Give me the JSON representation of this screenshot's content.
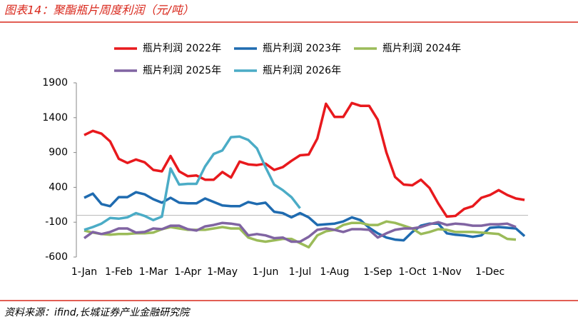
{
  "chart_data": {
    "type": "line",
    "title": "图表14：聚酯瓶片周度利润（元/吨）",
    "source": "资料来源：ifind,长城证券产业金融研究院",
    "categories": [
      "1-Jan",
      null,
      null,
      null,
      "1-Feb",
      null,
      null,
      null,
      "1-Mar",
      null,
      null,
      null,
      "1-Apr",
      null,
      null,
      null,
      "1-May",
      null,
      null,
      null,
      null,
      "1-Jun",
      null,
      null,
      null,
      "1-Jul",
      null,
      null,
      null,
      "1-Aug",
      null,
      null,
      null,
      null,
      "1-Sep",
      null,
      null,
      null,
      "1-Oct",
      null,
      null,
      null,
      "1-Nov",
      null,
      null,
      null,
      null,
      "1-Dec",
      null,
      null,
      null,
      null
    ],
    "ylim": [
      -600,
      1900
    ],
    "yticks": [
      -600,
      -100,
      400,
      900,
      1400,
      1900
    ],
    "series": [
      {
        "name": "瓶片利润 2022年",
        "color": "#e8191d",
        "values": [
          1150,
          1210,
          1170,
          1060,
          810,
          750,
          800,
          760,
          650,
          630,
          850,
          630,
          560,
          570,
          510,
          510,
          620,
          540,
          770,
          730,
          720,
          740,
          650,
          690,
          780,
          860,
          870,
          1100,
          1600,
          1410,
          1410,
          1610,
          1570,
          1570,
          1370,
          900,
          550,
          440,
          430,
          510,
          390,
          170,
          -20,
          -10,
          90,
          130,
          250,
          290,
          360,
          290,
          240,
          220
        ]
      },
      {
        "name": "瓶片利润 2023年",
        "color": "#1f6bb0",
        "values": [
          250,
          310,
          160,
          130,
          260,
          260,
          330,
          300,
          230,
          180,
          250,
          180,
          170,
          170,
          240,
          190,
          140,
          130,
          130,
          190,
          160,
          180,
          50,
          30,
          -30,
          30,
          -30,
          -140,
          -130,
          -120,
          -90,
          -30,
          -70,
          -180,
          -260,
          -320,
          -350,
          -360,
          -240,
          -150,
          -120,
          -120,
          -260,
          -280,
          -290,
          -310,
          -290,
          -180,
          -170,
          -180,
          -190,
          -300
        ]
      },
      {
        "name": "瓶片利润 2024年",
        "color": "#9bbb59",
        "values": [
          -220,
          -250,
          -270,
          -280,
          -270,
          -270,
          -260,
          -260,
          -250,
          -200,
          -170,
          -190,
          -210,
          -210,
          -210,
          -190,
          -170,
          -190,
          -190,
          -320,
          -360,
          -380,
          -360,
          -340,
          -340,
          -400,
          -460,
          -290,
          -230,
          -210,
          -140,
          -110,
          -110,
          -140,
          -140,
          -90,
          -110,
          -150,
          -190,
          -270,
          -240,
          -200,
          -210,
          -240,
          -240,
          -240,
          -250,
          -260,
          -270,
          -340,
          -350,
          null
        ]
      },
      {
        "name": "瓶片利润 2025年",
        "color": "#8064a2",
        "values": [
          -330,
          -240,
          -270,
          -240,
          -190,
          -190,
          -250,
          -240,
          -190,
          -200,
          -150,
          -150,
          -200,
          -220,
          -160,
          -140,
          -110,
          -120,
          -140,
          -290,
          -270,
          -290,
          -330,
          -320,
          -380,
          -380,
          -310,
          -210,
          -190,
          -210,
          -240,
          -200,
          -200,
          -210,
          -320,
          -260,
          -210,
          -190,
          -190,
          -170,
          -130,
          -100,
          -140,
          -120,
          -130,
          -150,
          -150,
          -130,
          -130,
          -120,
          -170,
          null
        ]
      },
      {
        "name": "瓶片利润 2026年",
        "color": "#4bacc6",
        "values": [
          -210,
          -170,
          -120,
          -40,
          -50,
          -30,
          30,
          -10,
          -70,
          -20,
          670,
          440,
          450,
          450,
          700,
          880,
          930,
          1120,
          1130,
          1080,
          960,
          690,
          440,
          360,
          260,
          100,
          null,
          null,
          null,
          null,
          null,
          null,
          null,
          null,
          null,
          null,
          null,
          null,
          null,
          null,
          null,
          null,
          null,
          null,
          null,
          null,
          null,
          null,
          null,
          null,
          null,
          null
        ]
      }
    ]
  }
}
